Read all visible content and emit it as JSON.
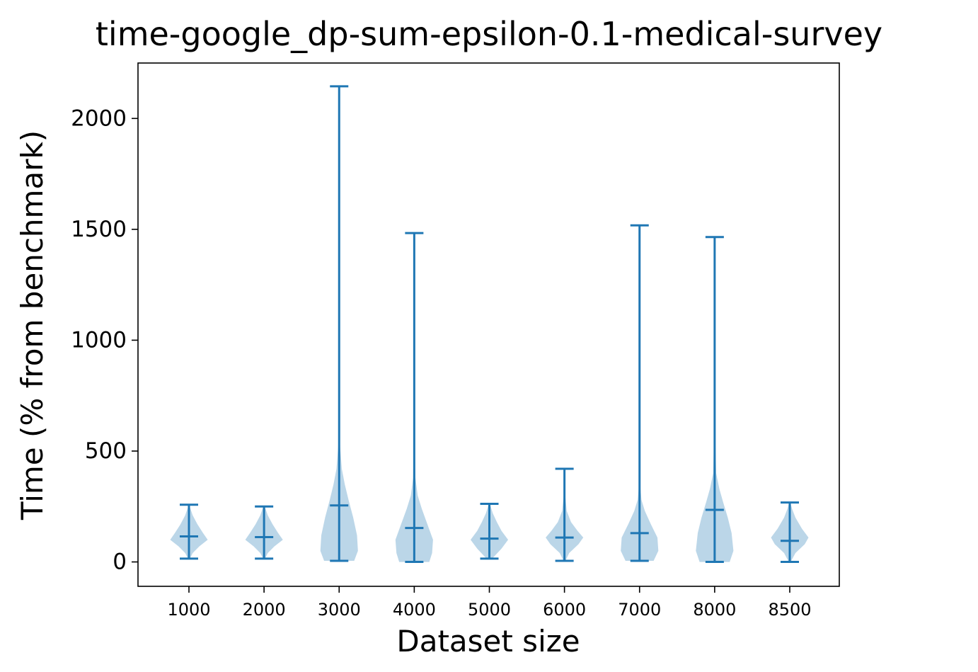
{
  "chart_data": {
    "type": "violin",
    "title": "time-google_dp-sum-epsilon-0.1-medical-survey",
    "xlabel": "Dataset size",
    "ylabel": "Time (% from benchmark)",
    "ylim": [
      -110,
      2250
    ],
    "yticks": [
      0,
      500,
      1000,
      1500,
      2000
    ],
    "grid": false,
    "legend": "none",
    "colors": {
      "line": "#1f77b4",
      "body": "#1f77b4",
      "body_opacity": 0.3
    },
    "categories": [
      "1000",
      "2000",
      "3000",
      "4000",
      "5000",
      "6000",
      "7000",
      "8000",
      "8500"
    ],
    "violins": [
      {
        "category": "1000",
        "min": 15,
        "mean": 115,
        "max": 258,
        "density": [
          [
            15,
            0.05
          ],
          [
            40,
            0.2
          ],
          [
            70,
            0.55
          ],
          [
            100,
            1.0
          ],
          [
            130,
            0.75
          ],
          [
            170,
            0.45
          ],
          [
            210,
            0.2
          ],
          [
            240,
            0.08
          ],
          [
            258,
            0.02
          ]
        ]
      },
      {
        "category": "2000",
        "min": 15,
        "mean": 112,
        "max": 250,
        "density": [
          [
            15,
            0.05
          ],
          [
            40,
            0.2
          ],
          [
            70,
            0.55
          ],
          [
            100,
            1.0
          ],
          [
            130,
            0.75
          ],
          [
            170,
            0.45
          ],
          [
            210,
            0.2
          ],
          [
            240,
            0.08
          ],
          [
            250,
            0.02
          ]
        ]
      },
      {
        "category": "3000",
        "min": 5,
        "mean": 255,
        "max": 2145,
        "density": [
          [
            5,
            0.8
          ],
          [
            50,
            1.0
          ],
          [
            120,
            0.95
          ],
          [
            200,
            0.75
          ],
          [
            280,
            0.5
          ],
          [
            350,
            0.3
          ],
          [
            420,
            0.14
          ],
          [
            520,
            0.05
          ],
          [
            700,
            0.02
          ],
          [
            1000,
            0.01
          ],
          [
            2145,
            0.005
          ]
        ]
      },
      {
        "category": "4000",
        "min": 0,
        "mean": 153,
        "max": 1483,
        "density": [
          [
            0,
            0.8
          ],
          [
            40,
            0.95
          ],
          [
            100,
            1.0
          ],
          [
            170,
            0.7
          ],
          [
            240,
            0.4
          ],
          [
            300,
            0.18
          ],
          [
            380,
            0.06
          ],
          [
            600,
            0.02
          ],
          [
            1000,
            0.01
          ],
          [
            1483,
            0.005
          ]
        ]
      },
      {
        "category": "5000",
        "min": 15,
        "mean": 105,
        "max": 262,
        "density": [
          [
            15,
            0.15
          ],
          [
            60,
            0.65
          ],
          [
            100,
            1.0
          ],
          [
            140,
            0.65
          ],
          [
            180,
            0.4
          ],
          [
            220,
            0.18
          ],
          [
            262,
            0.03
          ]
        ]
      },
      {
        "category": "6000",
        "min": 5,
        "mean": 110,
        "max": 420,
        "density": [
          [
            5,
            0.05
          ],
          [
            40,
            0.25
          ],
          [
            80,
            0.75
          ],
          [
            110,
            1.0
          ],
          [
            140,
            0.7
          ],
          [
            180,
            0.35
          ],
          [
            230,
            0.12
          ],
          [
            300,
            0.04
          ],
          [
            420,
            0.01
          ]
        ]
      },
      {
        "category": "7000",
        "min": 5,
        "mean": 130,
        "max": 1518,
        "density": [
          [
            5,
            0.75
          ],
          [
            50,
            1.0
          ],
          [
            110,
            0.95
          ],
          [
            170,
            0.6
          ],
          [
            230,
            0.28
          ],
          [
            280,
            0.1
          ],
          [
            350,
            0.03
          ],
          [
            700,
            0.01
          ],
          [
            1518,
            0.005
          ]
        ]
      },
      {
        "category": "8000",
        "min": 0,
        "mean": 235,
        "max": 1465,
        "density": [
          [
            0,
            0.8
          ],
          [
            50,
            1.0
          ],
          [
            130,
            0.9
          ],
          [
            200,
            0.7
          ],
          [
            270,
            0.45
          ],
          [
            330,
            0.25
          ],
          [
            400,
            0.08
          ],
          [
            600,
            0.02
          ],
          [
            1000,
            0.015
          ],
          [
            1465,
            0.005
          ]
        ]
      },
      {
        "category": "8500",
        "min": 0,
        "mean": 95,
        "max": 268,
        "density": [
          [
            0,
            0.05
          ],
          [
            40,
            0.3
          ],
          [
            80,
            0.8
          ],
          [
            110,
            1.0
          ],
          [
            150,
            0.65
          ],
          [
            200,
            0.3
          ],
          [
            240,
            0.12
          ],
          [
            268,
            0.03
          ]
        ]
      }
    ]
  }
}
